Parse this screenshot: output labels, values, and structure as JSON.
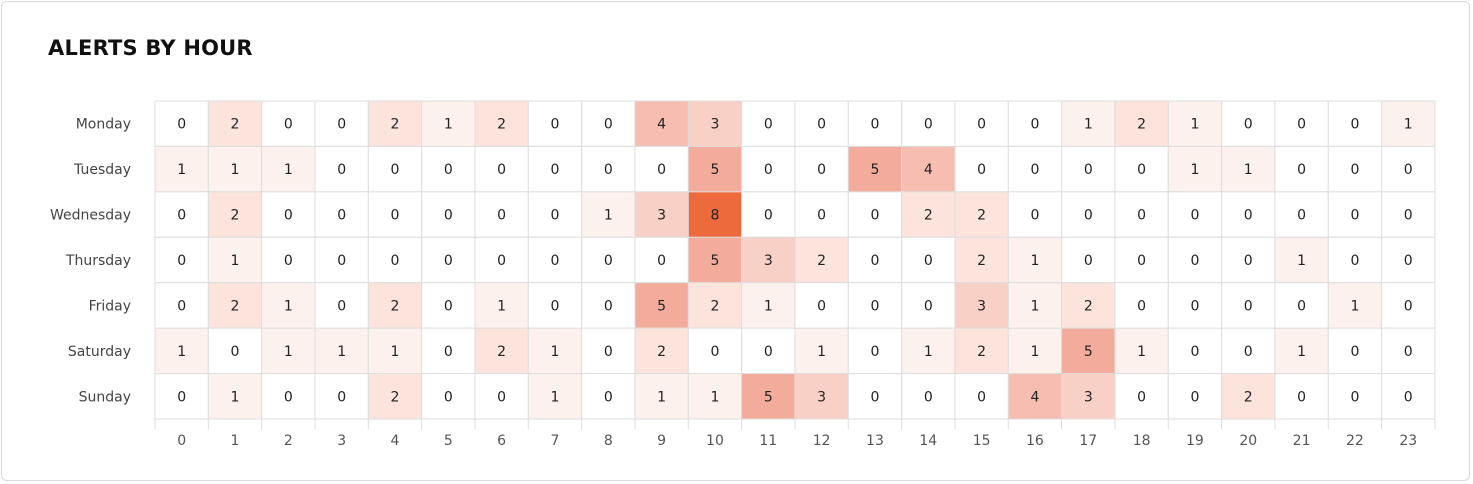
{
  "header": {
    "title": "ALERTS BY HOUR"
  },
  "chart_data": {
    "type": "heatmap",
    "title": "ALERTS BY HOUR",
    "rows": [
      "Monday",
      "Tuesday",
      "Wednesday",
      "Thursday",
      "Friday",
      "Saturday",
      "Sunday"
    ],
    "columns": [
      "0",
      "1",
      "2",
      "3",
      "4",
      "5",
      "6",
      "7",
      "8",
      "9",
      "10",
      "11",
      "12",
      "13",
      "14",
      "15",
      "16",
      "17",
      "18",
      "19",
      "20",
      "21",
      "22",
      "23"
    ],
    "values": [
      [
        0,
        2,
        0,
        0,
        2,
        1,
        2,
        0,
        0,
        4,
        3,
        0,
        0,
        0,
        0,
        0,
        0,
        1,
        2,
        1,
        0,
        0,
        0,
        1
      ],
      [
        1,
        1,
        1,
        0,
        0,
        0,
        0,
        0,
        0,
        0,
        5,
        0,
        0,
        5,
        4,
        0,
        0,
        0,
        0,
        1,
        1,
        0,
        0,
        0
      ],
      [
        0,
        2,
        0,
        0,
        0,
        0,
        0,
        0,
        1,
        3,
        8,
        0,
        0,
        0,
        2,
        2,
        0,
        0,
        0,
        0,
        0,
        0,
        0,
        0
      ],
      [
        0,
        1,
        0,
        0,
        0,
        0,
        0,
        0,
        0,
        0,
        5,
        3,
        2,
        0,
        0,
        2,
        1,
        0,
        0,
        0,
        0,
        1,
        0,
        0
      ],
      [
        0,
        2,
        1,
        0,
        2,
        0,
        1,
        0,
        0,
        5,
        2,
        1,
        0,
        0,
        0,
        3,
        1,
        2,
        0,
        0,
        0,
        0,
        1,
        0
      ],
      [
        1,
        0,
        1,
        1,
        1,
        0,
        2,
        1,
        0,
        2,
        0,
        0,
        1,
        0,
        1,
        2,
        1,
        5,
        1,
        0,
        0,
        1,
        0,
        0
      ],
      [
        0,
        1,
        0,
        0,
        2,
        0,
        0,
        1,
        0,
        1,
        1,
        5,
        3,
        0,
        0,
        0,
        4,
        3,
        0,
        0,
        2,
        0,
        0,
        0
      ]
    ],
    "color_scale": {
      "0": "#ffffff",
      "1": "#fdf1ee",
      "2": "#fce4dd",
      "3": "#f9d0c6",
      "4": "#f6bdb0",
      "5": "#f3ab9b",
      "8": "#ec6a3c"
    },
    "high_value_text_color": "#ffffff",
    "grid_color": "#dddddd"
  }
}
